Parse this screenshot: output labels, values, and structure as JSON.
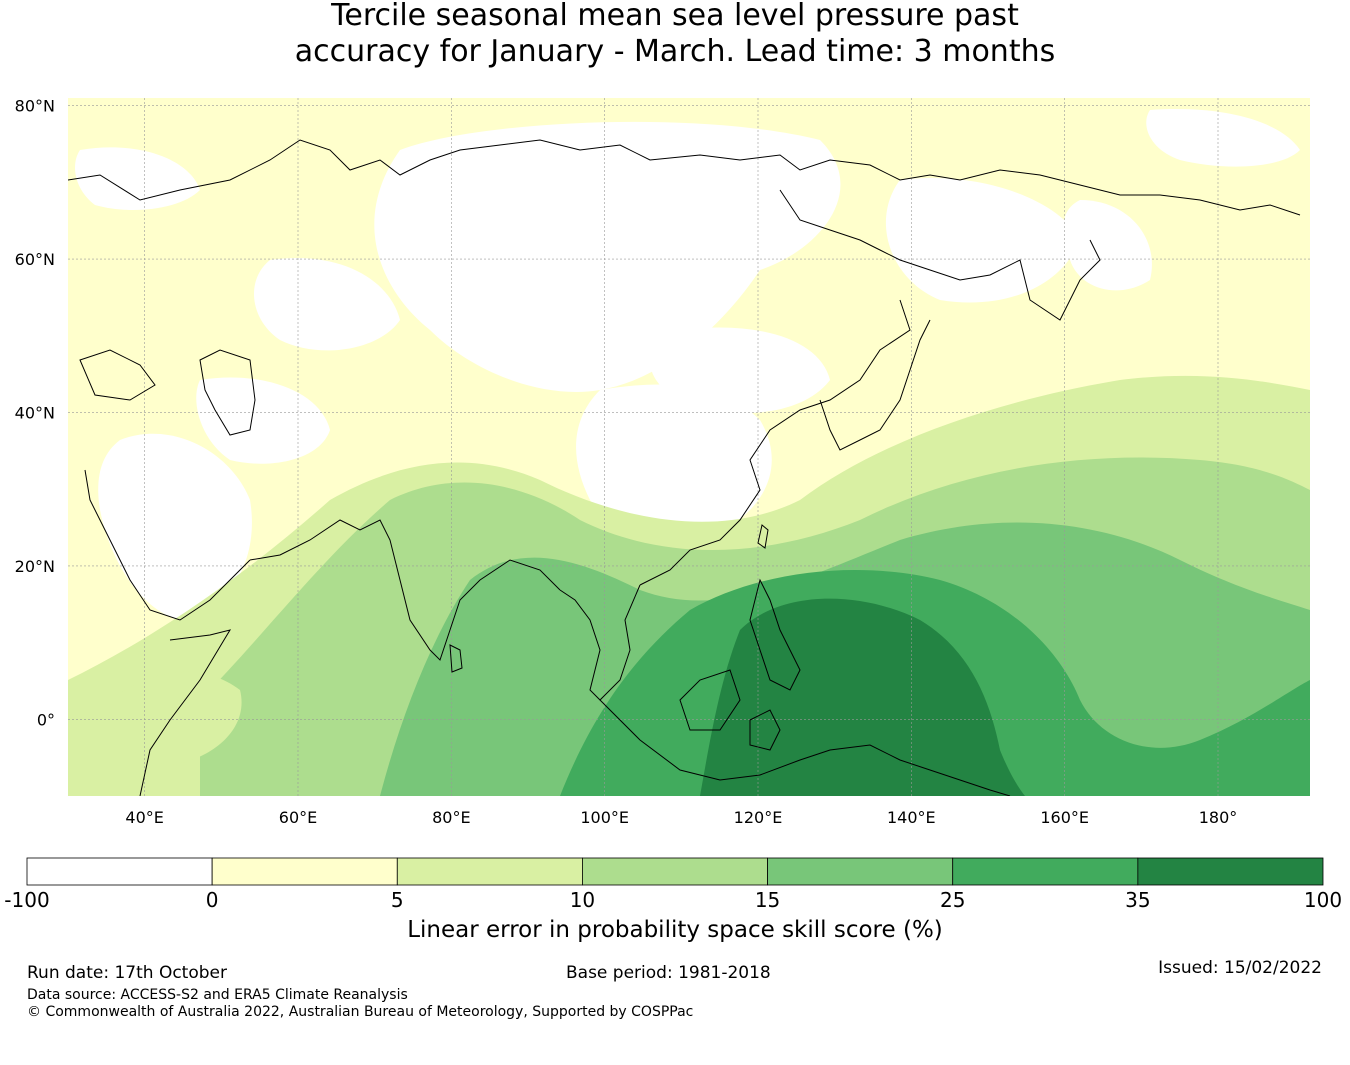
{
  "title": {
    "line1": "Tercile seasonal mean sea level pressure past",
    "line2": "accuracy for January - March. Lead time: 3 months"
  },
  "map": {
    "lat_labels": [
      "80°N",
      "60°N",
      "40°N",
      "20°N",
      "0°"
    ],
    "lon_labels": [
      "40°E",
      "60°E",
      "80°E",
      "100°E",
      "120°E",
      "140°E",
      "160°E",
      "180°"
    ],
    "lat_range": [
      -10,
      81
    ],
    "lon_range": [
      30,
      192
    ],
    "lat_ticks": [
      80,
      60,
      40,
      20,
      0
    ],
    "lon_ticks": [
      40,
      60,
      80,
      100,
      120,
      140,
      160,
      180
    ]
  },
  "colorbar": {
    "bounds": [
      "-100",
      "0",
      "5",
      "10",
      "15",
      "25",
      "35",
      "100"
    ],
    "colors": [
      "#ffffff",
      "#ffffcc",
      "#d9f0a3",
      "#addd8e",
      "#78c679",
      "#41ab5d",
      "#238443"
    ],
    "label": "Linear error in probability space skill score (%)"
  },
  "footer": {
    "run_date": "Run date: 17th October",
    "base_period": "Base period: 1981-2018",
    "issued": "Issued: 15/02/2022",
    "data_source": "Data source: ACCESS-S2 and ERA5 Climate Reanalysis",
    "copyright": "© Commonwealth of Australia 2022, Australian Bureau of Meteorology, Supported by COSPPac"
  },
  "colors": {
    "land_outline": "#000000",
    "gridline": "#999999"
  }
}
